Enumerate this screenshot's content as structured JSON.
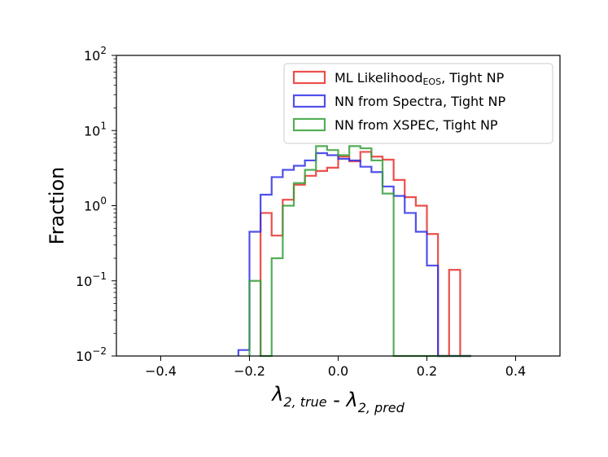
{
  "chart_data": {
    "type": "histogram",
    "xlabel": {
      "parts": [
        {
          "base": "λ",
          "sub": "2, true"
        },
        {
          "sep": " - "
        },
        {
          "base": "λ",
          "sub": "2, pred"
        }
      ]
    },
    "ylabel": "Fraction",
    "xlim": [
      -0.5,
      0.5
    ],
    "ylim": [
      0.01,
      100
    ],
    "yscale": "log",
    "xticks": [
      {
        "value": -0.4,
        "label": "−0.4"
      },
      {
        "value": -0.2,
        "label": "−0.2"
      },
      {
        "value": 0.0,
        "label": "0.0"
      },
      {
        "value": 0.2,
        "label": "0.2"
      },
      {
        "value": 0.4,
        "label": "0.4"
      }
    ],
    "yticks": [
      {
        "value": 0.01,
        "base": "10",
        "exp": "−2"
      },
      {
        "value": 0.1,
        "base": "10",
        "exp": "−1"
      },
      {
        "value": 1,
        "base": "10",
        "exp": "0"
      },
      {
        "value": 10,
        "base": "10",
        "exp": "1"
      },
      {
        "value": 100,
        "base": "10",
        "exp": "2"
      }
    ],
    "grid": false,
    "legend_position": "top-right",
    "series": [
      {
        "name": "ML Likelihood",
        "name_sub": "EOS",
        "name_suffix": ", Tight NP",
        "color": "#e8302c",
        "bin_edges": [
          -0.225,
          -0.2,
          -0.175,
          -0.15,
          -0.125,
          -0.1,
          -0.075,
          -0.05,
          -0.025,
          0.0,
          0.025,
          0.05,
          0.075,
          0.1,
          0.125,
          0.15,
          0.175,
          0.2,
          0.225,
          0.25,
          0.275,
          0.3
        ],
        "values": [
          0.0,
          0.0,
          0.8,
          0.4,
          1.2,
          1.9,
          2.5,
          2.9,
          3.2,
          4.5,
          3.9,
          5.2,
          4.5,
          4.1,
          2.2,
          1.3,
          1.0,
          0.42,
          0.0,
          0.14,
          0.0
        ]
      },
      {
        "name": "NN from Spectra",
        "name_sub": "",
        "name_suffix": ", Tight NP",
        "color": "#3131e8",
        "bin_edges": [
          -0.225,
          -0.2,
          -0.175,
          -0.15,
          -0.125,
          -0.1,
          -0.075,
          -0.05,
          -0.025,
          0.0,
          0.025,
          0.05,
          0.075,
          0.1,
          0.125,
          0.15,
          0.175,
          0.2,
          0.225,
          0.25,
          0.275,
          0.3
        ],
        "values": [
          0.012,
          0.45,
          1.4,
          2.4,
          3.0,
          3.4,
          4.0,
          5.0,
          4.7,
          4.2,
          4.0,
          3.3,
          2.8,
          1.8,
          1.35,
          0.8,
          0.45,
          0.16,
          0.0,
          0.0,
          0.0
        ]
      },
      {
        "name": "NN from XSPEC",
        "name_sub": "",
        "name_suffix": ", Tight NP",
        "color": "#36a03a",
        "bin_edges": [
          -0.225,
          -0.2,
          -0.175,
          -0.15,
          -0.125,
          -0.1,
          -0.075,
          -0.05,
          -0.025,
          0.0,
          0.025,
          0.05,
          0.075,
          0.1,
          0.125,
          0.15,
          0.175,
          0.2,
          0.225,
          0.25,
          0.275,
          0.3
        ],
        "values": [
          0.0,
          0.1,
          0.0,
          0.2,
          1.0,
          2.0,
          3.0,
          6.2,
          5.5,
          4.7,
          6.2,
          5.8,
          4.0,
          1.45,
          0.0,
          0.0,
          0.0,
          0.0,
          0.0,
          0.0,
          0.0
        ]
      }
    ]
  }
}
